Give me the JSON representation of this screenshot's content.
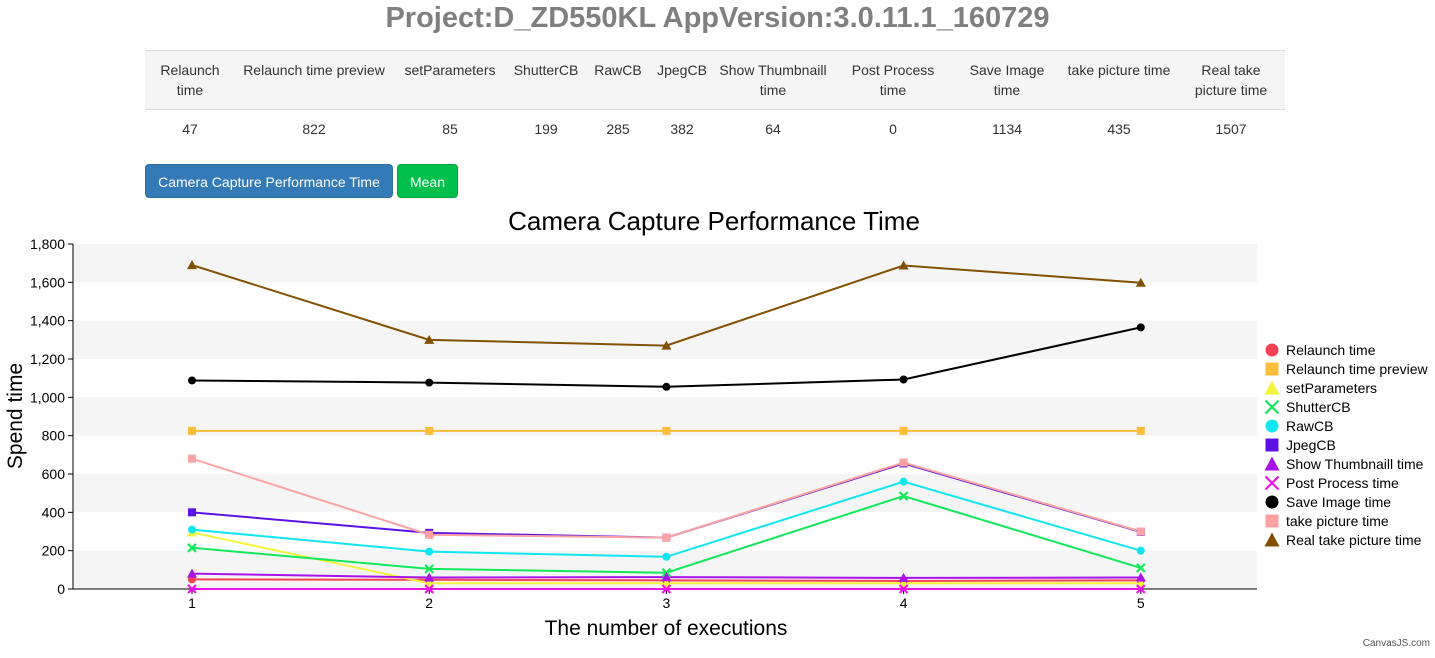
{
  "header": {
    "title": "Project:D_ZD550KL AppVersion:3.0.11.1_160729"
  },
  "summary_table": {
    "headers": [
      "Relaunch time",
      "Relaunch time preview",
      "setParameters",
      "ShutterCB",
      "RawCB",
      "JpegCB",
      "Show Thumbnaill time",
      "Post Process time",
      "Save Image time",
      "take picture time",
      "Real take picture time"
    ],
    "values": [
      "47",
      "822",
      "85",
      "199",
      "285",
      "382",
      "64",
      "0",
      "1134",
      "435",
      "1507"
    ]
  },
  "buttons": {
    "performance": "Camera Capture Performance Time",
    "mean": "Mean"
  },
  "watermark": "CanvasJS.com",
  "chart_data": {
    "type": "line",
    "title": "Camera Capture Performance Time",
    "xlabel": "The number of executions",
    "ylabel": "Spend time",
    "x": [
      1,
      2,
      3,
      4,
      5
    ],
    "ylim": [
      0,
      1800
    ],
    "yticks": [
      "0",
      "200",
      "400",
      "600",
      "800",
      "1,000",
      "1,200",
      "1,400",
      "1,600",
      "1,800"
    ],
    "xticks": [
      "1",
      "2",
      "3",
      "4",
      "5"
    ],
    "legend_position": "right",
    "alternating_bands": true,
    "series": [
      {
        "name": "Relaunch time",
        "color": "#f44253",
        "marker": "circle",
        "values": [
          50,
          48,
          45,
          42,
          45
        ]
      },
      {
        "name": "Relaunch time preview",
        "color": "#fbbd3c",
        "marker": "square",
        "values": [
          825,
          825,
          825,
          825,
          825
        ]
      },
      {
        "name": "setParameters",
        "color": "#f4f43c",
        "marker": "triangle",
        "values": [
          295,
          30,
          30,
          30,
          30
        ]
      },
      {
        "name": "ShutterCB",
        "color": "#13e85a",
        "marker": "cross",
        "values": [
          215,
          105,
          85,
          485,
          110
        ]
      },
      {
        "name": "RawCB",
        "color": "#11e6f0",
        "marker": "circle",
        "values": [
          310,
          195,
          168,
          560,
          200
        ]
      },
      {
        "name": "JpegCB",
        "color": "#5c12e5",
        "marker": "square",
        "values": [
          400,
          293,
          268,
          655,
          298
        ]
      },
      {
        "name": "Show Thumbnaill time",
        "color": "#a713e8",
        "marker": "triangle",
        "values": [
          80,
          60,
          62,
          58,
          60
        ]
      },
      {
        "name": "Post Process time",
        "color": "#ec12ec",
        "marker": "cross",
        "values": [
          0,
          0,
          0,
          0,
          0
        ]
      },
      {
        "name": "Save Image time",
        "color": "#000000",
        "marker": "circle",
        "values": [
          1088,
          1077,
          1055,
          1093,
          1365
        ]
      },
      {
        "name": "take picture time",
        "color": "#fba3a3",
        "marker": "square",
        "values": [
          680,
          283,
          268,
          660,
          300
        ]
      },
      {
        "name": "Real take picture time",
        "color": "#825000",
        "marker": "triangle",
        "values": [
          1690,
          1300,
          1270,
          1688,
          1598
        ]
      }
    ]
  }
}
